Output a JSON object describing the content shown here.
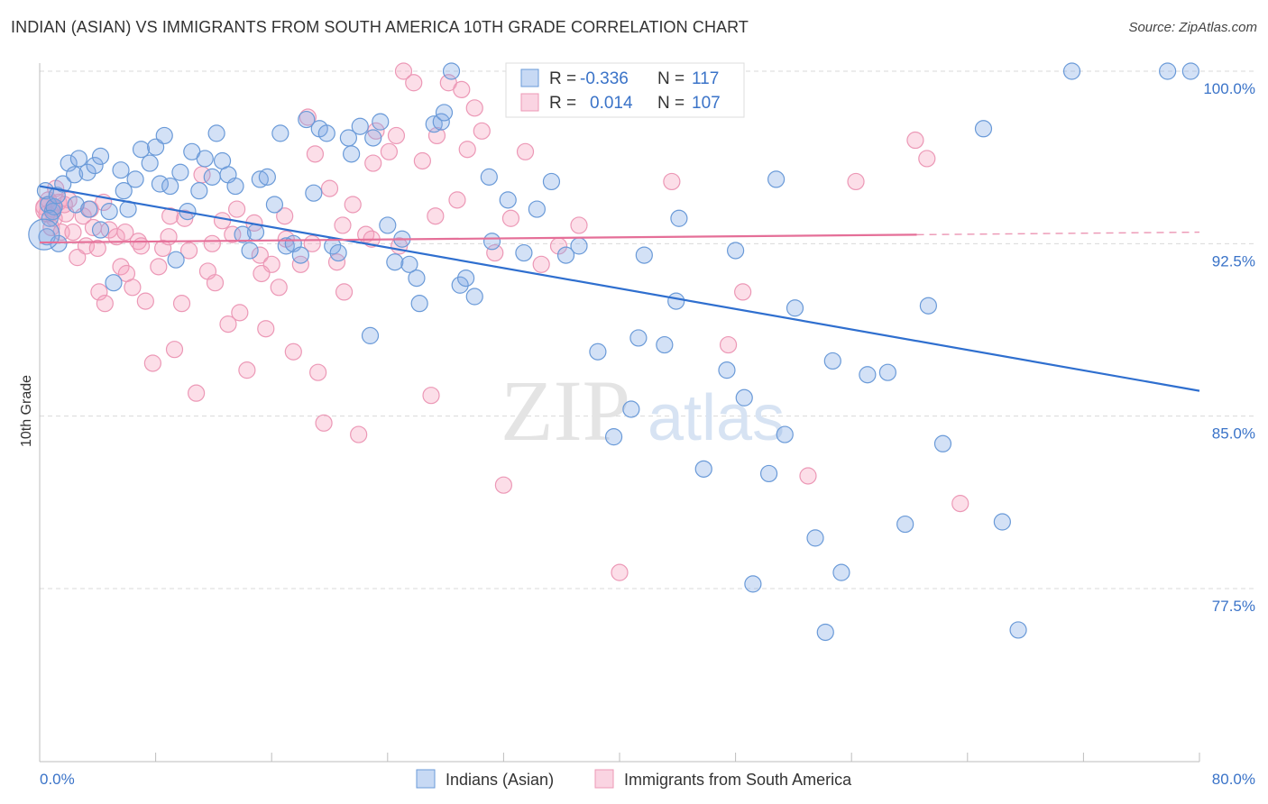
{
  "title": "INDIAN (ASIAN) VS IMMIGRANTS FROM SOUTH AMERICA 10TH GRADE CORRELATION CHART",
  "source": "Source: ZipAtlas.com",
  "watermark": {
    "zip": "ZIP",
    "atlas": "atlas"
  },
  "legend_box": {
    "rows": [
      {
        "r_label": "R =",
        "r_value": "-0.336",
        "n_label": "N =",
        "n_value": "117"
      },
      {
        "r_label": "R =",
        "r_value": "0.014",
        "n_label": "N =",
        "n_value": "107"
      }
    ]
  },
  "colors": {
    "blue_fill": "rgba(130,170,230,0.35)",
    "blue_stroke": "#6a9ad8",
    "blue_line": "#2f6fcf",
    "pink_fill": "rgba(245,160,190,0.35)",
    "pink_stroke": "#ec98b6",
    "pink_line": "#e56f98",
    "value_text": "#3a73c8",
    "grid": "#d9d9d9"
  },
  "chart_data": {
    "type": "scatter",
    "title": "INDIAN (ASIAN) VS IMMIGRANTS FROM SOUTH AMERICA 10TH GRADE CORRELATION CHART",
    "xlabel": "",
    "ylabel": "10th Grade",
    "xlim": [
      0,
      80
    ],
    "ylim": [
      70,
      100.5
    ],
    "x_tick_labels": [
      "0.0%",
      "80.0%"
    ],
    "y_ticks": [
      77.5,
      85.0,
      92.5,
      100.0
    ],
    "y_tick_labels": [
      "77.5%",
      "85.0%",
      "92.5%",
      "100.0%"
    ],
    "legend": [
      "Indians (Asian)",
      "Immigrants from South America"
    ],
    "series": [
      {
        "name": "Indians (Asian)",
        "color": "blue",
        "r": -0.336,
        "n": 117,
        "trend": {
          "x": [
            0,
            80
          ],
          "y": [
            95.0,
            86.1
          ],
          "dash_from": null
        },
        "points": [
          [
            0.4,
            94.8
          ],
          [
            0.6,
            94.2
          ],
          [
            0.9,
            93.9
          ],
          [
            1.0,
            94.1
          ],
          [
            1.2,
            94.6
          ],
          [
            1.6,
            95.1
          ],
          [
            2.0,
            96.0
          ],
          [
            2.4,
            95.5
          ],
          [
            2.7,
            96.2
          ],
          [
            3.3,
            95.6
          ],
          [
            3.8,
            95.9
          ],
          [
            4.2,
            96.3
          ],
          [
            0.5,
            92.8
          ],
          [
            1.3,
            92.5
          ],
          [
            2.5,
            94.2
          ],
          [
            3.4,
            94.0
          ],
          [
            4.2,
            93.1
          ],
          [
            4.8,
            93.9
          ],
          [
            5.1,
            90.8
          ],
          [
            5.6,
            95.7
          ],
          [
            5.8,
            94.8
          ],
          [
            6.1,
            94.0
          ],
          [
            6.6,
            95.3
          ],
          [
            7.0,
            96.6
          ],
          [
            7.6,
            96.0
          ],
          [
            8.0,
            96.7
          ],
          [
            8.3,
            95.1
          ],
          [
            8.6,
            97.2
          ],
          [
            9.0,
            95.0
          ],
          [
            9.4,
            91.8
          ],
          [
            9.7,
            95.6
          ],
          [
            10.2,
            93.9
          ],
          [
            10.5,
            96.5
          ],
          [
            11.0,
            94.8
          ],
          [
            11.4,
            96.2
          ],
          [
            11.9,
            95.4
          ],
          [
            12.2,
            97.3
          ],
          [
            12.6,
            96.1
          ],
          [
            13.0,
            95.5
          ],
          [
            13.5,
            95.0
          ],
          [
            14.0,
            92.9
          ],
          [
            14.5,
            92.2
          ],
          [
            14.9,
            93.0
          ],
          [
            15.2,
            95.3
          ],
          [
            15.7,
            95.4
          ],
          [
            16.2,
            94.2
          ],
          [
            16.6,
            97.3
          ],
          [
            17.0,
            92.4
          ],
          [
            17.5,
            92.5
          ],
          [
            18.0,
            92.0
          ],
          [
            18.4,
            97.9
          ],
          [
            18.9,
            94.7
          ],
          [
            19.3,
            97.5
          ],
          [
            19.8,
            97.3
          ],
          [
            20.2,
            92.4
          ],
          [
            20.6,
            92.1
          ],
          [
            21.3,
            97.1
          ],
          [
            21.5,
            96.4
          ],
          [
            22.1,
            97.6
          ],
          [
            23.0,
            97.1
          ],
          [
            23.5,
            97.8
          ],
          [
            24.0,
            93.3
          ],
          [
            24.5,
            91.7
          ],
          [
            25.0,
            92.7
          ],
          [
            25.5,
            91.6
          ],
          [
            26.0,
            91.0
          ],
          [
            26.2,
            89.9
          ],
          [
            27.2,
            97.7
          ],
          [
            27.7,
            97.8
          ],
          [
            27.9,
            98.2
          ],
          [
            28.4,
            100.0
          ],
          [
            29.0,
            90.7
          ],
          [
            29.4,
            91.0
          ],
          [
            30.0,
            90.2
          ],
          [
            31.0,
            95.4
          ],
          [
            31.2,
            92.6
          ],
          [
            32.3,
            94.4
          ],
          [
            33.4,
            92.1
          ],
          [
            34.3,
            94.0
          ],
          [
            35.3,
            95.2
          ],
          [
            36.3,
            92.0
          ],
          [
            37.2,
            92.4
          ],
          [
            38.5,
            87.8
          ],
          [
            38.9,
            98.4
          ],
          [
            39.6,
            84.1
          ],
          [
            40.8,
            85.3
          ],
          [
            41.3,
            88.4
          ],
          [
            41.7,
            92.0
          ],
          [
            43.1,
            88.1
          ],
          [
            43.9,
            90.0
          ],
          [
            44.1,
            93.6
          ],
          [
            45.8,
            82.7
          ],
          [
            47.4,
            87.0
          ],
          [
            48.0,
            92.2
          ],
          [
            48.6,
            85.8
          ],
          [
            49.2,
            77.7
          ],
          [
            50.3,
            82.5
          ],
          [
            50.8,
            95.3
          ],
          [
            51.4,
            84.2
          ],
          [
            52.1,
            89.7
          ],
          [
            53.5,
            79.7
          ],
          [
            54.2,
            75.6
          ],
          [
            54.7,
            87.4
          ],
          [
            55.3,
            78.2
          ],
          [
            57.1,
            86.8
          ],
          [
            58.5,
            86.9
          ],
          [
            59.7,
            80.3
          ],
          [
            61.3,
            89.8
          ],
          [
            62.3,
            83.8
          ],
          [
            65.1,
            97.5
          ],
          [
            66.4,
            80.4
          ],
          [
            67.5,
            75.7
          ],
          [
            71.2,
            100.0
          ],
          [
            77.8,
            100.0
          ],
          [
            79.4,
            100.0
          ],
          [
            0.7,
            93.6
          ],
          [
            22.8,
            88.5
          ]
        ]
      },
      {
        "name": "Immigrants from South America",
        "color": "pink",
        "r": 0.014,
        "n": 107,
        "trend": {
          "x": [
            0,
            80
          ],
          "y": [
            92.55,
            93.0
          ],
          "dash_from": 60.5
        },
        "points": [
          [
            0.3,
            94.1
          ],
          [
            0.5,
            93.8
          ],
          [
            0.6,
            94.4
          ],
          [
            0.8,
            93.2
          ],
          [
            1.0,
            93.6
          ],
          [
            1.1,
            94.9
          ],
          [
            1.3,
            94.3
          ],
          [
            1.5,
            93.0
          ],
          [
            1.8,
            93.8
          ],
          [
            2.0,
            94.4
          ],
          [
            2.3,
            93.0
          ],
          [
            2.6,
            91.9
          ],
          [
            3.0,
            93.7
          ],
          [
            3.2,
            92.4
          ],
          [
            3.5,
            94.0
          ],
          [
            4.0,
            92.3
          ],
          [
            4.1,
            90.4
          ],
          [
            4.5,
            89.9
          ],
          [
            4.8,
            93.1
          ],
          [
            5.3,
            92.8
          ],
          [
            5.6,
            91.5
          ],
          [
            6.0,
            91.2
          ],
          [
            6.4,
            90.6
          ],
          [
            6.8,
            92.6
          ],
          [
            7.3,
            90.0
          ],
          [
            7.8,
            87.3
          ],
          [
            8.2,
            91.5
          ],
          [
            8.5,
            92.3
          ],
          [
            9.0,
            93.7
          ],
          [
            9.3,
            87.9
          ],
          [
            9.8,
            89.9
          ],
          [
            10.3,
            92.2
          ],
          [
            10.8,
            86.0
          ],
          [
            11.2,
            95.5
          ],
          [
            11.6,
            91.3
          ],
          [
            12.1,
            90.8
          ],
          [
            12.6,
            93.5
          ],
          [
            13.0,
            89.0
          ],
          [
            13.3,
            92.9
          ],
          [
            13.8,
            89.5
          ],
          [
            14.3,
            87.0
          ],
          [
            14.8,
            93.4
          ],
          [
            15.2,
            92.0
          ],
          [
            15.6,
            88.8
          ],
          [
            16.0,
            91.6
          ],
          [
            16.5,
            90.6
          ],
          [
            17.0,
            92.7
          ],
          [
            17.5,
            87.8
          ],
          [
            18.0,
            91.6
          ],
          [
            18.5,
            98.0
          ],
          [
            19.0,
            96.4
          ],
          [
            19.2,
            86.9
          ],
          [
            19.6,
            84.7
          ],
          [
            20.0,
            94.9
          ],
          [
            20.5,
            91.7
          ],
          [
            21.0,
            90.4
          ],
          [
            21.6,
            94.2
          ],
          [
            22.0,
            84.2
          ],
          [
            22.5,
            92.9
          ],
          [
            23.0,
            96.0
          ],
          [
            23.2,
            97.4
          ],
          [
            24.1,
            96.5
          ],
          [
            24.6,
            97.2
          ],
          [
            25.1,
            100.0
          ],
          [
            25.8,
            99.5
          ],
          [
            26.4,
            96.1
          ],
          [
            27.0,
            85.9
          ],
          [
            27.4,
            97.2
          ],
          [
            28.2,
            99.5
          ],
          [
            29.1,
            99.2
          ],
          [
            29.5,
            96.6
          ],
          [
            30.0,
            98.4
          ],
          [
            30.5,
            97.4
          ],
          [
            31.4,
            92.1
          ],
          [
            32.0,
            82.0
          ],
          [
            33.5,
            96.5
          ],
          [
            34.6,
            91.6
          ],
          [
            35.8,
            92.4
          ],
          [
            37.2,
            93.3
          ],
          [
            40.0,
            78.2
          ],
          [
            43.6,
            95.2
          ],
          [
            47.5,
            88.1
          ],
          [
            48.5,
            90.4
          ],
          [
            53.0,
            82.4
          ],
          [
            56.3,
            95.2
          ],
          [
            60.4,
            97.0
          ],
          [
            61.2,
            96.2
          ],
          [
            63.5,
            81.2
          ],
          [
            0.9,
            94.0
          ],
          [
            1.7,
            94.2
          ],
          [
            3.7,
            93.2
          ],
          [
            4.4,
            94.3
          ],
          [
            5.9,
            93.0
          ],
          [
            7.0,
            92.4
          ],
          [
            8.9,
            92.8
          ],
          [
            10.0,
            93.6
          ],
          [
            11.9,
            92.5
          ],
          [
            13.6,
            94.0
          ],
          [
            15.3,
            91.2
          ],
          [
            16.9,
            93.7
          ],
          [
            18.8,
            92.5
          ],
          [
            20.9,
            93.3
          ],
          [
            22.9,
            92.7
          ],
          [
            24.8,
            92.4
          ],
          [
            27.3,
            93.7
          ],
          [
            28.8,
            94.4
          ],
          [
            32.5,
            93.6
          ]
        ]
      }
    ]
  }
}
